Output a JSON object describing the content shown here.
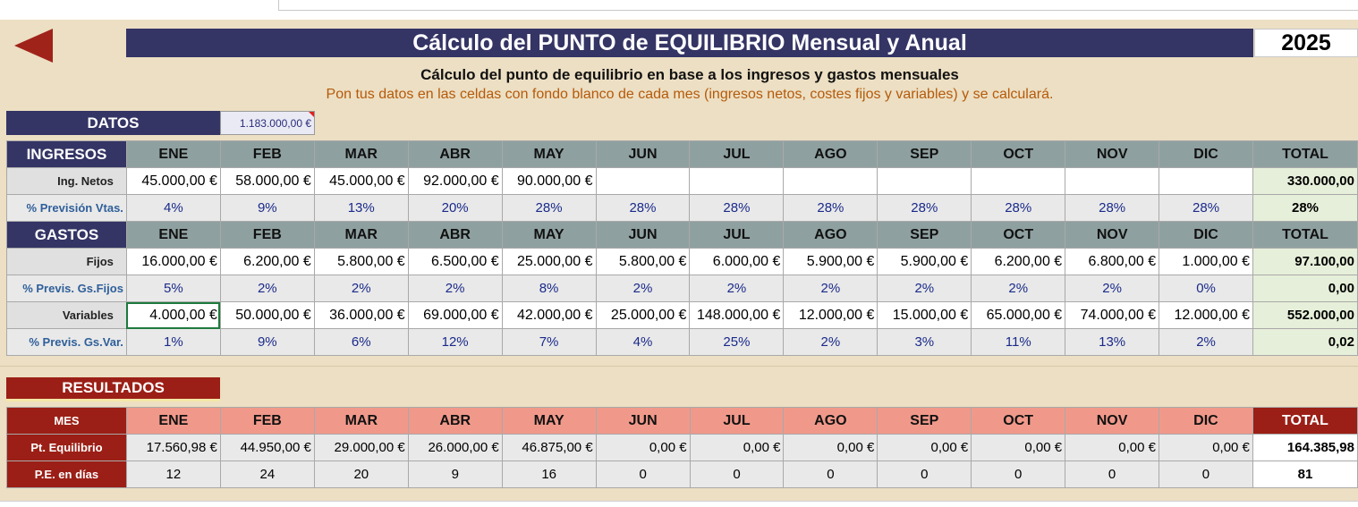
{
  "header": {
    "title": "Cálculo del PUNTO de EQUILIBRIO Mensual y Anual",
    "year": "2025",
    "subtitle": "Cálculo del punto de equilibrio en base a los ingresos y gastos mensuales",
    "instructions": "Pon tus datos en las celdas con fondo blanco de cada mes (ingresos netos, costes fijos y variables) y se calculará."
  },
  "datos": {
    "label": "DATOS",
    "value": "1.183.000,00 €"
  },
  "months": [
    "ENE",
    "FEB",
    "MAR",
    "ABR",
    "MAY",
    "JUN",
    "JUL",
    "AGO",
    "SEP",
    "OCT",
    "NOV",
    "DIC"
  ],
  "total_label": "TOTAL",
  "ingresos": {
    "label": "INGRESOS",
    "rows": [
      {
        "label": "Ing. Netos",
        "kind": "val",
        "values": [
          "45.000,00 €",
          "58.000,00 €",
          "45.000,00 €",
          "92.000,00 €",
          "90.000,00 €",
          "",
          "",
          "",
          "",
          "",
          "",
          ""
        ],
        "total": "330.000,00"
      },
      {
        "label": "% Previsión Vtas.",
        "kind": "pct",
        "values": [
          "4%",
          "9%",
          "13%",
          "20%",
          "28%",
          "28%",
          "28%",
          "28%",
          "28%",
          "28%",
          "28%",
          "28%"
        ],
        "total": "28%"
      }
    ]
  },
  "gastos": {
    "label": "GASTOS",
    "rows": [
      {
        "label": "Fijos",
        "kind": "val",
        "values": [
          "16.000,00 €",
          "6.200,00 €",
          "5.800,00 €",
          "6.500,00 €",
          "25.000,00 €",
          "5.800,00 €",
          "6.000,00 €",
          "5.900,00 €",
          "5.900,00 €",
          "6.200,00 €",
          "6.800,00 €",
          "1.000,00 €"
        ],
        "total": "97.100,00"
      },
      {
        "label": "% Previs. Gs.Fijos",
        "kind": "pct",
        "values": [
          "5%",
          "2%",
          "2%",
          "2%",
          "8%",
          "2%",
          "2%",
          "2%",
          "2%",
          "2%",
          "2%",
          "0%"
        ],
        "total": "0,00"
      },
      {
        "label": "Variables",
        "kind": "val",
        "values": [
          "4.000,00 €",
          "50.000,00 €",
          "36.000,00 €",
          "69.000,00 €",
          "42.000,00 €",
          "25.000,00 €",
          "148.000,00 €",
          "12.000,00 €",
          "15.000,00 €",
          "65.000,00 €",
          "74.000,00 €",
          "12.000,00 €"
        ],
        "total": "552.000,00"
      },
      {
        "label": "% Previs. Gs.Var.",
        "kind": "pct",
        "values": [
          "1%",
          "9%",
          "6%",
          "12%",
          "7%",
          "4%",
          "25%",
          "2%",
          "3%",
          "11%",
          "13%",
          "2%"
        ],
        "total": "0,02"
      }
    ]
  },
  "resultados": {
    "label": "RESULTADOS",
    "header_label": "MES",
    "rows": [
      {
        "label": "Pt. Equilibrio",
        "kind": "val",
        "values": [
          "17.560,98 €",
          "44.950,00 €",
          "29.000,00 €",
          "26.000,00 €",
          "46.875,00 €",
          "0,00 €",
          "0,00 €",
          "0,00 €",
          "0,00 €",
          "0,00 €",
          "0,00 €",
          "0,00 €"
        ],
        "total": "164.385,98"
      },
      {
        "label": "P.E. en días",
        "kind": "num",
        "values": [
          "12",
          "24",
          "20",
          "9",
          "16",
          "0",
          "0",
          "0",
          "0",
          "0",
          "0",
          "0"
        ],
        "total": "81"
      }
    ]
  },
  "colors": {
    "navy_header": "#343465",
    "month_header": "#8fa0a0",
    "result_dark": "#9b1f16",
    "result_month": "#f0998a",
    "sheet_bg": "#ecdfc3",
    "total_bg": "#e6efd9"
  }
}
